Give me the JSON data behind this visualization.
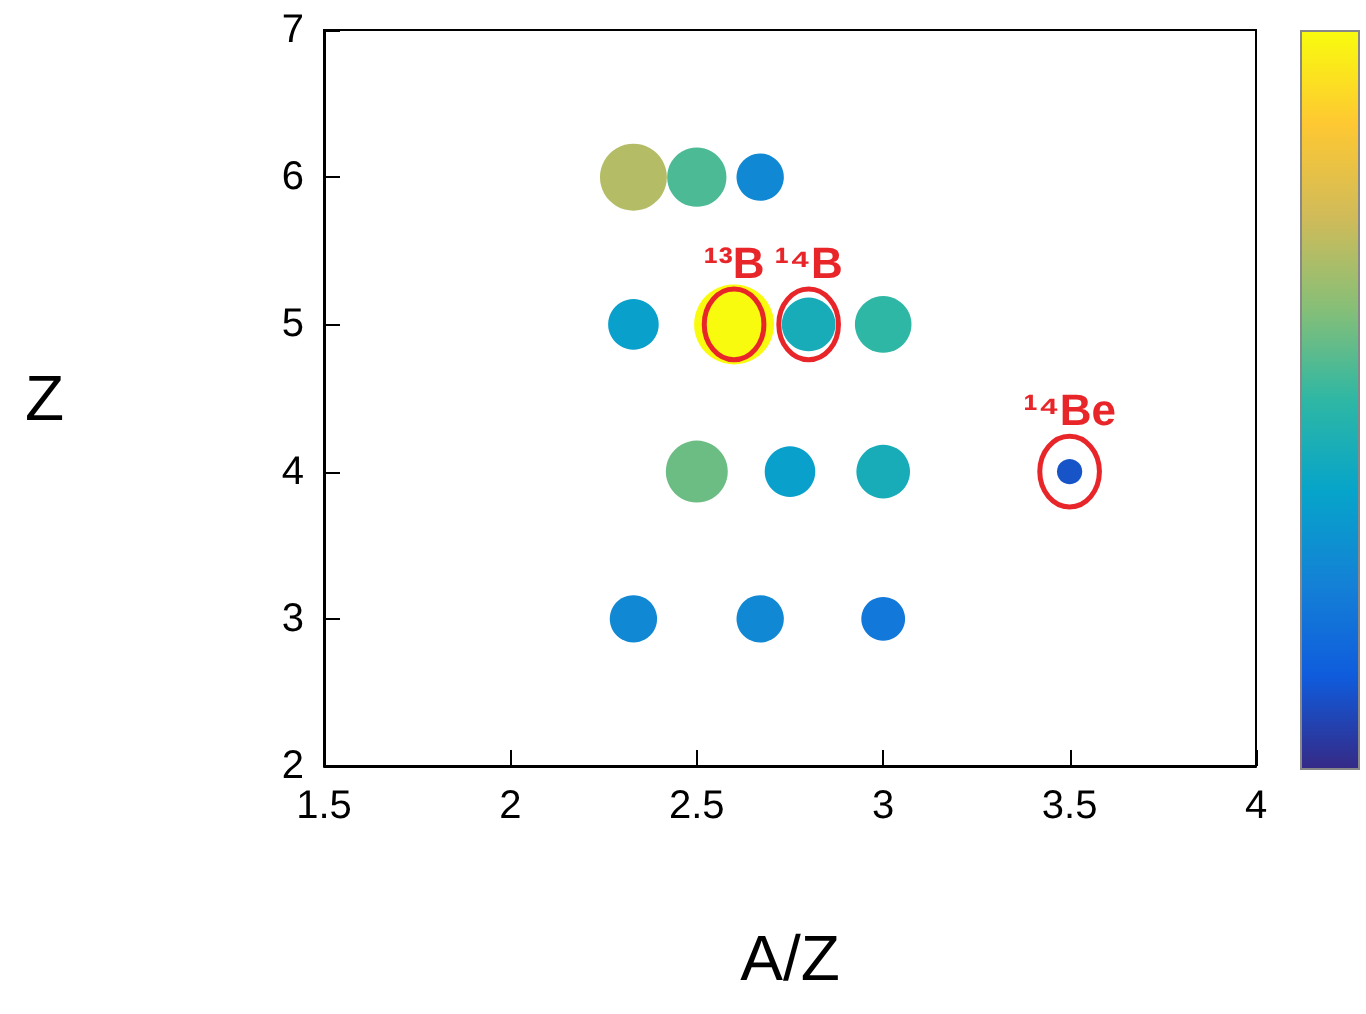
{
  "chart_data": {
    "type": "bubble",
    "xlabel": "A/Z",
    "ylabel": "Z",
    "x": [
      2.33,
      2.5,
      2.67,
      2.33,
      2.6,
      2.8,
      3.0,
      2.5,
      2.75,
      3.0,
      3.5,
      2.33,
      2.67,
      3.0
    ],
    "values": [
      6,
      6,
      6,
      5,
      5,
      5,
      5,
      4,
      4,
      4,
      4,
      3,
      3,
      3
    ],
    "sizes": [
      0.7,
      0.55,
      0.35,
      0.4,
      1,
      0.45,
      0.5,
      0.6,
      0.4,
      0.45,
      0.1,
      0.35,
      0.35,
      0.3
    ],
    "colors": [
      "#b4bd65",
      "#4cba94",
      "#1188d4",
      "#0aa0cc",
      "#f9fb0e",
      "#17acb8",
      "#2eb7a4",
      "#6cbd83",
      "#0aa0cc",
      "#17acb8",
      "#1654c7",
      "#1188d4",
      "#1188d4",
      "#1278d9"
    ],
    "marker": "circle",
    "xlim": [
      1.5,
      4
    ],
    "xticks": [
      1.5,
      2,
      2.5,
      3,
      3.5,
      4
    ],
    "ylim": [
      2,
      7
    ],
    "yticks": [
      2,
      3,
      4,
      5,
      6,
      7
    ],
    "annotations": [
      {
        "text": "¹³B",
        "x": 2.6,
        "y": 5
      },
      {
        "text": "¹⁴B",
        "x": 2.8,
        "y": 5
      },
      {
        "text": "¹⁴Be",
        "x": 3.5,
        "y": 4
      }
    ]
  }
}
